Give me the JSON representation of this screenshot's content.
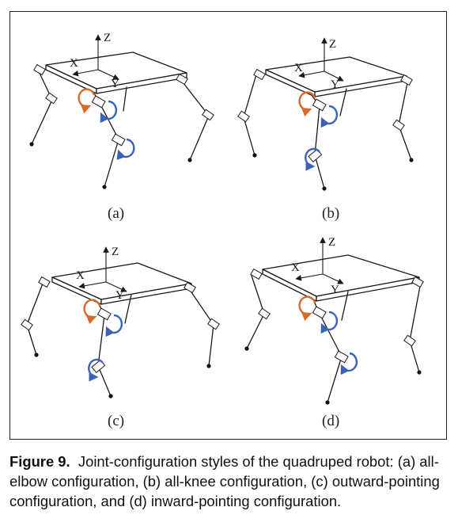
{
  "panels": [
    {
      "id": "a",
      "label": "(a)"
    },
    {
      "id": "b",
      "label": "(b)"
    },
    {
      "id": "c",
      "label": "(c)"
    },
    {
      "id": "d",
      "label": "(d)"
    }
  ],
  "axes": {
    "x": "X",
    "y": "Y",
    "z": "Z"
  },
  "colors": {
    "hip_rotation": "#d96a2a",
    "joint_rotation": "#3a63b8",
    "ink": "#1a1a1a"
  },
  "caption": {
    "lead": "Figure 9.",
    "text": "Joint-configuration styles of the quadruped robot: (a) all-elbow configuration, (b) all-knee configuration, (c) outward-pointing configuration, and (d) inward-pointing configuration."
  }
}
